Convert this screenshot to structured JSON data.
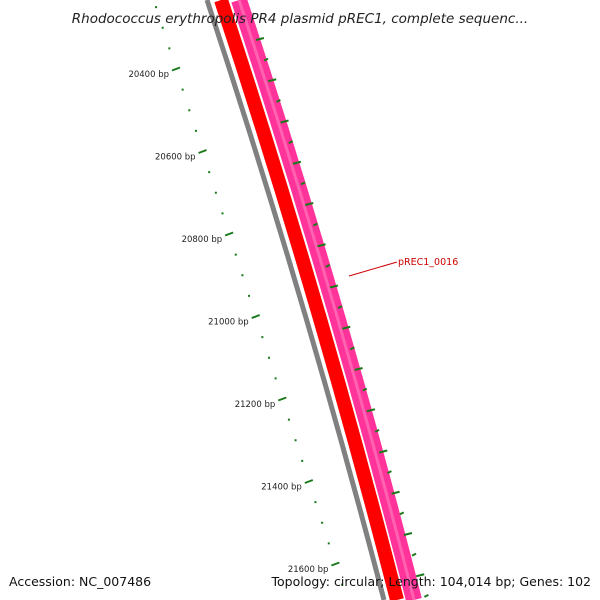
{
  "title": "Rhodococcus erythropolis PR4 plasmid pREC1, complete sequenc...",
  "ticks": [
    {
      "pos": 20400,
      "label": "20400 bp"
    },
    {
      "pos": 20600,
      "label": "20600 bp"
    },
    {
      "pos": 20800,
      "label": "20800 bp"
    },
    {
      "pos": 21000,
      "label": "21000 bp"
    },
    {
      "pos": 21200,
      "label": "21200 bp"
    },
    {
      "pos": 21400,
      "label": "21400 bp"
    },
    {
      "pos": 21600,
      "label": "21600 bp"
    }
  ],
  "gene": {
    "label": "pREC1_0016"
  },
  "footer": {
    "accession": "Accession: NC_007486",
    "summary": "Topology: circular; Length: 104,014 bp; Genes: 102"
  },
  "colors": {
    "backbone": "#808080",
    "cds_forward": "#ff0000",
    "gene_track": "#ff3399",
    "gene_track_light": "#ff88c4",
    "tick": "#1a7a1a",
    "gene_label": "#cc0000"
  }
}
